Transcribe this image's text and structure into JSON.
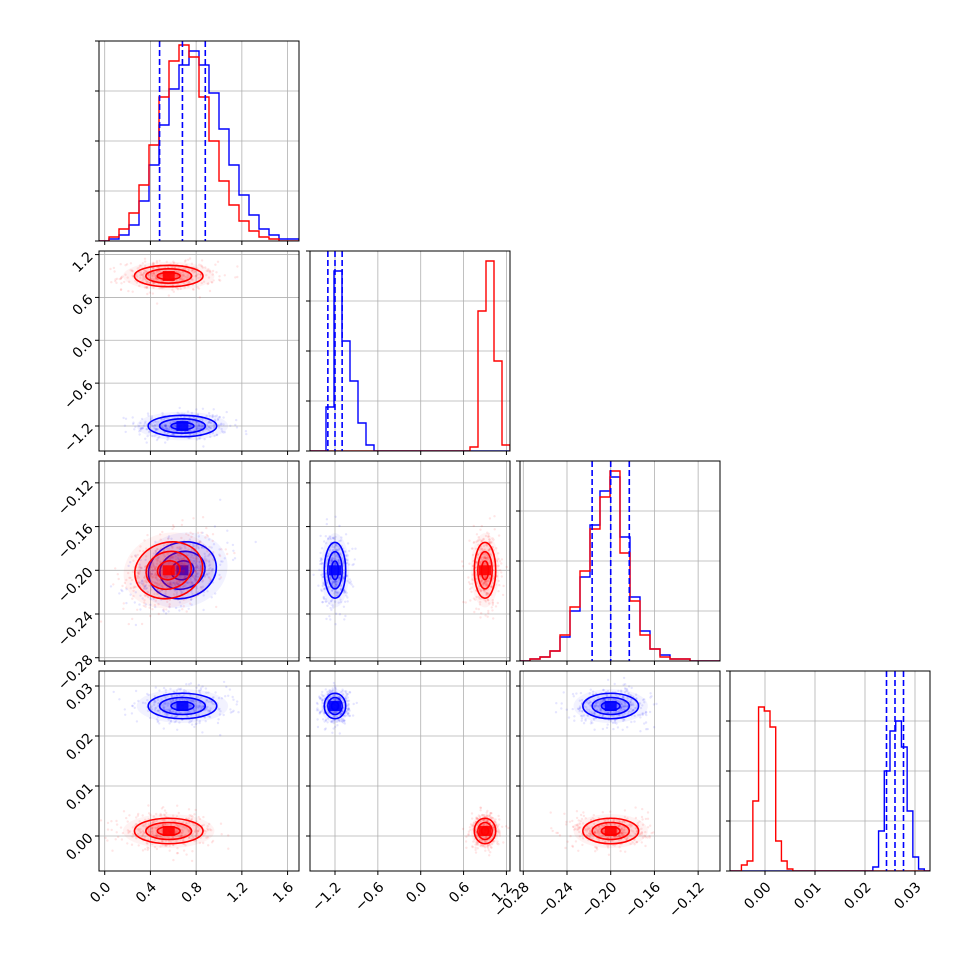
{
  "colors": {
    "series_a": "#0000ff",
    "series_b": "#ff0000",
    "grid": "#b0b0b0",
    "axes": "#000000"
  },
  "chart_data": {
    "type": "corner",
    "grid": true,
    "parameters": [
      {
        "ticks": [
          0.0,
          0.4,
          0.8,
          1.2,
          1.6
        ],
        "tick_labels": [
          "0.0",
          "0.4",
          "0.8",
          "1.2",
          "1.6"
        ],
        "range": [
          -0.05,
          1.7
        ]
      },
      {
        "ticks": [
          -1.2,
          -0.6,
          0.0,
          0.6,
          1.2
        ],
        "tick_labels": [
          "−1.2",
          "−0.6",
          "0.0",
          "0.6",
          "1.2"
        ],
        "range": [
          -1.55,
          1.25
        ]
      },
      {
        "ticks": [
          -0.28,
          -0.24,
          -0.2,
          -0.16,
          -0.12
        ],
        "tick_labels": [
          "−0.28",
          "−0.24",
          "−0.20",
          "−0.16",
          "−0.12"
        ],
        "range": [
          -0.283,
          -0.1
        ]
      },
      {
        "ticks": [
          0.0,
          0.01,
          0.02,
          0.03
        ],
        "tick_labels": [
          "0.00",
          "0.01",
          "0.02",
          "0.03"
        ],
        "range": [
          -0.007,
          0.033
        ]
      }
    ],
    "series": [
      {
        "color": "#0000ff",
        "mean": [
          0.68,
          -1.2,
          -0.2,
          0.026
        ],
        "sd": [
          0.2,
          0.1,
          0.017,
          0.0017
        ],
        "corr12": 0.35,
        "quantiles": true
      },
      {
        "color": "#ff0000",
        "mean": [
          0.56,
          0.9,
          -0.2,
          0.001
        ],
        "sd": [
          0.2,
          0.1,
          0.017,
          0.0017
        ],
        "corr12": 0.35,
        "quantiles": false
      }
    ],
    "histograms": [
      {
        "edges": [
          -0.05,
          1.7
        ],
        "counts": {
          "#0000ff": [
            0,
            0.01,
            0.03,
            0.08,
            0.2,
            0.38,
            0.58,
            0.76,
            0.88,
            0.95,
            0.88,
            0.74,
            0.56,
            0.38,
            0.23,
            0.13,
            0.06,
            0.03,
            0.01,
            0.01
          ],
          "#ff0000": [
            0,
            0.02,
            0.06,
            0.14,
            0.28,
            0.48,
            0.72,
            0.9,
            0.98,
            0.92,
            0.72,
            0.5,
            0.3,
            0.18,
            0.1,
            0.05,
            0.02,
            0.01,
            0,
            0
          ]
        }
      },
      {
        "edges": [
          -1.55,
          1.25
        ],
        "counts": {
          "#0000ff": [
            0,
            0,
            0.22,
            0.9,
            0.55,
            0.35,
            0.14,
            0.03,
            0,
            0,
            0,
            0,
            0,
            0,
            0,
            0,
            0,
            0,
            0,
            0,
            0,
            0,
            0,
            0,
            0
          ],
          "#ff0000": [
            0,
            0,
            0,
            0,
            0,
            0,
            0,
            0,
            0,
            0,
            0,
            0,
            0,
            0,
            0,
            0,
            0,
            0,
            0,
            0,
            0.02,
            0.7,
            0.95,
            0.45,
            0.03
          ]
        }
      },
      {
        "edges": [
          -0.283,
          -0.1
        ],
        "counts": {
          "#0000ff": [
            0,
            0.01,
            0.02,
            0.05,
            0.12,
            0.25,
            0.42,
            0.68,
            0.85,
            0.92,
            0.62,
            0.32,
            0.15,
            0.06,
            0.03,
            0.01,
            0.01,
            0,
            0,
            0
          ],
          "#ff0000": [
            0,
            0.01,
            0.02,
            0.05,
            0.13,
            0.27,
            0.45,
            0.66,
            0.82,
            0.95,
            0.54,
            0.3,
            0.13,
            0.06,
            0.02,
            0.01,
            0.01,
            0,
            0,
            0
          ]
        }
      },
      {
        "edges": [
          -0.007,
          0.033
        ],
        "counts": {
          "#0000ff": [
            0,
            0,
            0,
            0,
            0,
            0,
            0,
            0,
            0,
            0,
            0,
            0,
            0,
            0,
            0,
            0,
            0,
            0,
            0,
            0,
            0,
            0,
            0,
            0,
            0,
            0.02,
            0.2,
            0.5,
            0.7,
            0.75,
            0.62,
            0.3,
            0.07,
            0.01,
            0
          ],
          "#ff0000": [
            0,
            0,
            0.03,
            0.05,
            0.35,
            0.82,
            0.8,
            0.72,
            0.15,
            0.05,
            0.01,
            0,
            0,
            0,
            0,
            0,
            0,
            0,
            0,
            0,
            0,
            0,
            0,
            0,
            0,
            0,
            0,
            0,
            0,
            0,
            0,
            0,
            0,
            0,
            0
          ]
        }
      }
    ]
  }
}
